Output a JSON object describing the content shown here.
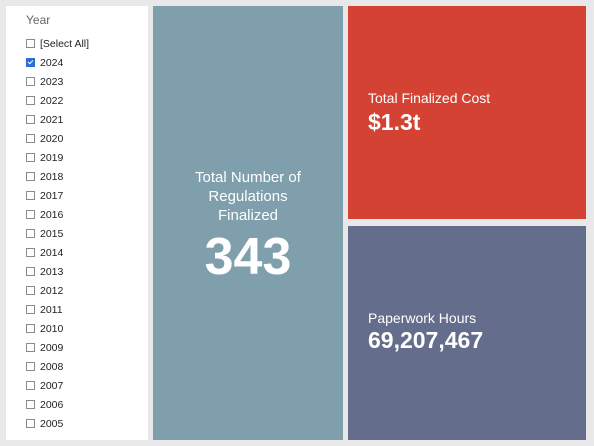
{
  "filter": {
    "title": "Year",
    "items": [
      {
        "label": "[Select All]",
        "checked": false
      },
      {
        "label": "2024",
        "checked": true
      },
      {
        "label": "2023",
        "checked": false
      },
      {
        "label": "2022",
        "checked": false
      },
      {
        "label": "2021",
        "checked": false
      },
      {
        "label": "2020",
        "checked": false
      },
      {
        "label": "2019",
        "checked": false
      },
      {
        "label": "2018",
        "checked": false
      },
      {
        "label": "2017",
        "checked": false
      },
      {
        "label": "2016",
        "checked": false
      },
      {
        "label": "2015",
        "checked": false
      },
      {
        "label": "2014",
        "checked": false
      },
      {
        "label": "2013",
        "checked": false
      },
      {
        "label": "2012",
        "checked": false
      },
      {
        "label": "2011",
        "checked": false
      },
      {
        "label": "2010",
        "checked": false
      },
      {
        "label": "2009",
        "checked": false
      },
      {
        "label": "2008",
        "checked": false
      },
      {
        "label": "2007",
        "checked": false
      },
      {
        "label": "2006",
        "checked": false
      },
      {
        "label": "2005",
        "checked": false
      }
    ]
  },
  "cards": {
    "regulations": {
      "title_lines": [
        "Total Number of",
        "Regulations",
        "Finalized"
      ],
      "value": "343",
      "color": "#7f9fad"
    },
    "cost": {
      "title": "Total Finalized Cost",
      "value": "$1.3t",
      "color": "#d44233"
    },
    "paperwork": {
      "title": "Paperwork Hours",
      "value": "69,207,467",
      "color": "#646d8b"
    }
  },
  "colors": {
    "background": "#e8e8e8",
    "checkbox_checked": "#2a6fd6"
  }
}
